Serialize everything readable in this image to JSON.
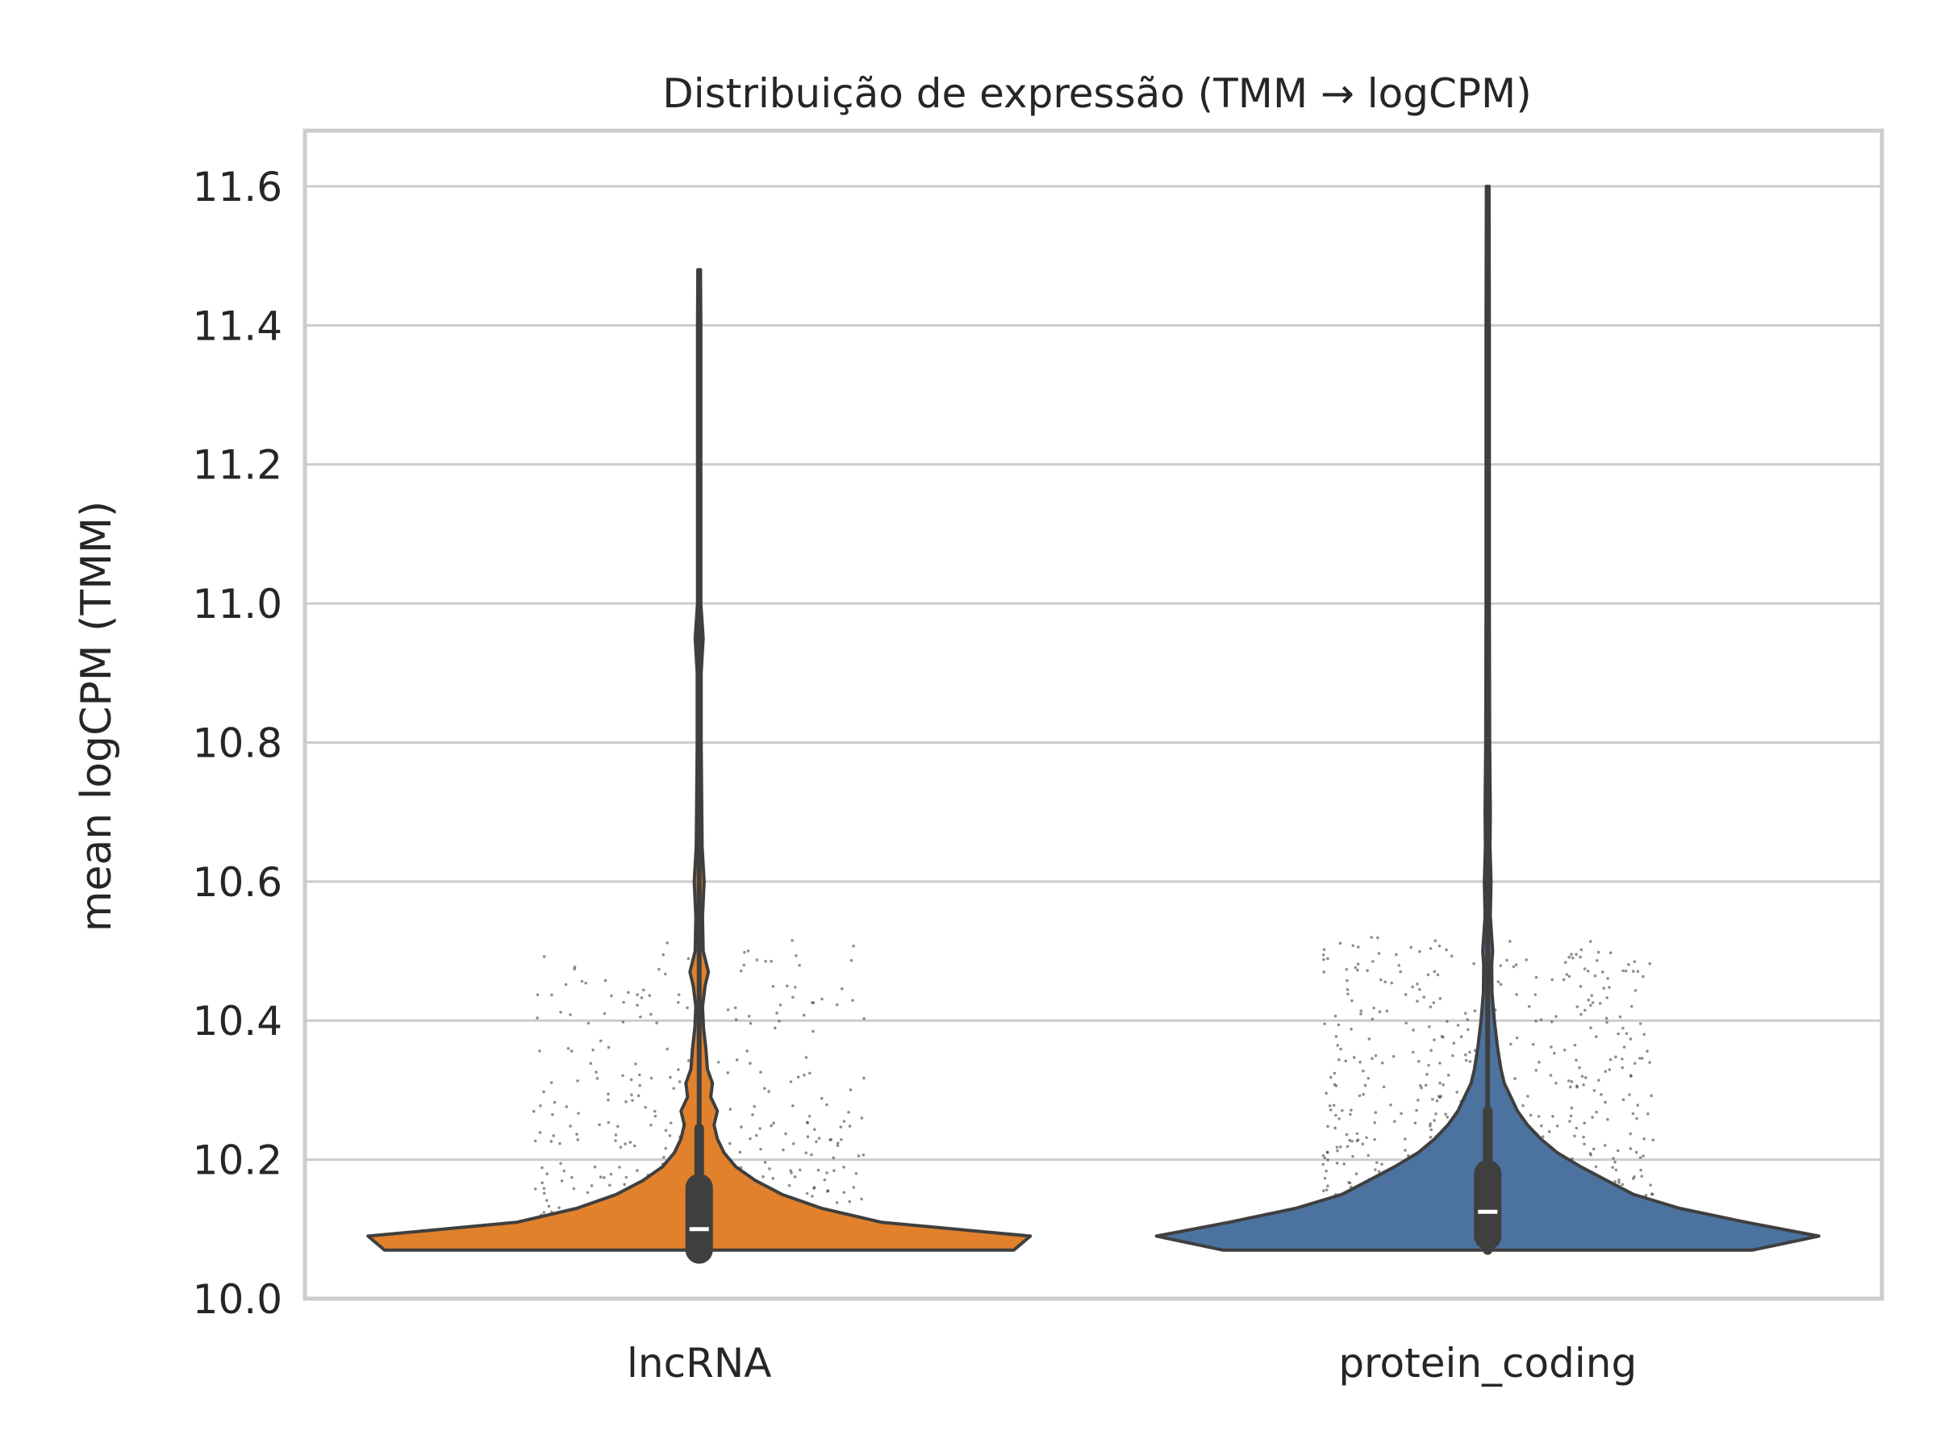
{
  "chart_data": {
    "type": "violin",
    "title": "Distribuição de expressão (TMM → logCPM)",
    "xlabel": "",
    "ylabel": "mean logCPM (TMM)",
    "ylim": [
      10.0,
      11.68
    ],
    "yticks": [
      "10.0",
      "10.2",
      "10.4",
      "10.6",
      "10.8",
      "11.0",
      "11.2",
      "11.4",
      "11.6"
    ],
    "grid": true,
    "categories": [
      "lncRNA",
      "protein_coding"
    ],
    "series": [
      {
        "category": "lncRNA",
        "color": "#e1812c",
        "min": 10.07,
        "q1": 10.07,
        "median": 10.1,
        "q3": 10.16,
        "whisker_high": 10.245,
        "max": 11.48,
        "density_profile": [
          [
            10.07,
            0.95
          ],
          [
            10.09,
            1.0
          ],
          [
            10.11,
            0.55
          ],
          [
            10.13,
            0.37
          ],
          [
            10.15,
            0.25
          ],
          [
            10.17,
            0.17
          ],
          [
            10.19,
            0.11
          ],
          [
            10.21,
            0.075
          ],
          [
            10.23,
            0.055
          ],
          [
            10.25,
            0.045
          ],
          [
            10.27,
            0.055
          ],
          [
            10.29,
            0.035
          ],
          [
            10.31,
            0.04
          ],
          [
            10.33,
            0.025
          ],
          [
            10.36,
            0.02
          ],
          [
            10.39,
            0.013
          ],
          [
            10.42,
            0.01
          ],
          [
            10.45,
            0.018
          ],
          [
            10.47,
            0.028
          ],
          [
            10.5,
            0.012
          ],
          [
            10.55,
            0.01
          ],
          [
            10.6,
            0.015
          ],
          [
            10.65,
            0.009
          ],
          [
            10.7,
            0.008
          ],
          [
            10.8,
            0.006
          ],
          [
            10.9,
            0.006
          ],
          [
            10.95,
            0.012
          ],
          [
            11.0,
            0.005
          ],
          [
            11.2,
            0.005
          ],
          [
            11.4,
            0.005
          ],
          [
            11.48,
            0.004
          ]
        ]
      },
      {
        "category": "protein_coding",
        "color": "#4c72a0",
        "min": 10.07,
        "q1": 10.09,
        "median": 10.125,
        "q3": 10.18,
        "whisker_high": 10.27,
        "max": 11.6,
        "density_profile": [
          [
            10.07,
            0.8
          ],
          [
            10.09,
            1.0
          ],
          [
            10.11,
            0.78
          ],
          [
            10.13,
            0.58
          ],
          [
            10.15,
            0.44
          ],
          [
            10.17,
            0.36
          ],
          [
            10.19,
            0.28
          ],
          [
            10.21,
            0.21
          ],
          [
            10.23,
            0.16
          ],
          [
            10.25,
            0.12
          ],
          [
            10.27,
            0.09
          ],
          [
            10.29,
            0.07
          ],
          [
            10.31,
            0.05
          ],
          [
            10.33,
            0.04
          ],
          [
            10.36,
            0.03
          ],
          [
            10.4,
            0.02
          ],
          [
            10.44,
            0.013
          ],
          [
            10.48,
            0.012
          ],
          [
            10.5,
            0.015
          ],
          [
            10.55,
            0.008
          ],
          [
            10.6,
            0.01
          ],
          [
            10.65,
            0.007
          ],
          [
            10.7,
            0.008
          ],
          [
            10.8,
            0.006
          ],
          [
            11.0,
            0.005
          ],
          [
            11.2,
            0.005
          ],
          [
            11.4,
            0.005
          ],
          [
            11.6,
            0.004
          ]
        ]
      }
    ]
  }
}
